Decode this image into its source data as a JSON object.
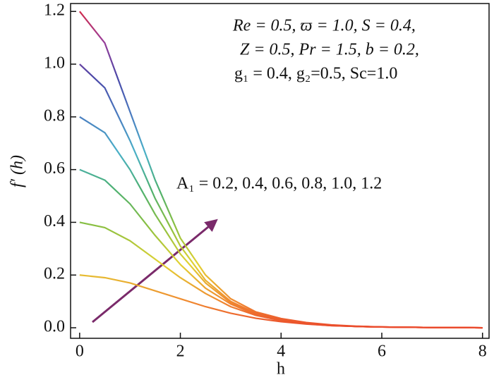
{
  "chart_data": {
    "type": "line",
    "xlabel": "h",
    "ylabel": "f′ (h)",
    "annotations": [
      "Re = 0.5,  ϖ = 1.0, S = 0.4,",
      "Z = 0.5, Pr = 1.5, b = 0.2,",
      "g₁ = 0.4, g₂=0.5, Sc=1.0",
      "A₁ = 0.2, 0.4, 0.6, 0.8, 1.0, 1.2"
    ],
    "x": [
      0,
      0.5,
      1,
      1.5,
      2,
      2.5,
      3,
      3.5,
      4,
      4.5,
      5,
      5.5,
      6,
      6.5,
      7,
      7.5,
      8
    ],
    "series": [
      {
        "values": [
          0.2,
          0.19,
          0.17,
          0.14,
          0.11,
          0.08,
          0.055,
          0.036,
          0.023,
          0.014,
          0.008,
          0.005,
          0.003,
          0.002,
          0.001,
          0.001,
          0
        ]
      },
      {
        "values": [
          0.4,
          0.38,
          0.33,
          0.26,
          0.19,
          0.13,
          0.08,
          0.047,
          0.027,
          0.015,
          0.008,
          0.005,
          0.003,
          0.002,
          0.001,
          0.001,
          0
        ]
      },
      {
        "values": [
          0.6,
          0.56,
          0.47,
          0.35,
          0.24,
          0.15,
          0.09,
          0.05,
          0.029,
          0.016,
          0.009,
          0.005,
          0.003,
          0.002,
          0.001,
          0.001,
          0
        ]
      },
      {
        "values": [
          0.8,
          0.74,
          0.6,
          0.43,
          0.28,
          0.17,
          0.095,
          0.053,
          0.03,
          0.017,
          0.009,
          0.005,
          0.003,
          0.002,
          0.001,
          0.001,
          0
        ]
      },
      {
        "values": [
          1.0,
          0.91,
          0.71,
          0.49,
          0.31,
          0.18,
          0.1,
          0.055,
          0.032,
          0.018,
          0.01,
          0.005,
          0.003,
          0.002,
          0.001,
          0.001,
          0
        ]
      },
      {
        "values": [
          1.2,
          1.08,
          0.82,
          0.56,
          0.34,
          0.2,
          0.11,
          0.06,
          0.035,
          0.02,
          0.011,
          0.006,
          0.003,
          0.002,
          0.001,
          0.001,
          0
        ]
      }
    ],
    "colorscale": [
      "#e8302a",
      "#f08a30",
      "#e2d232",
      "#8cc040",
      "#4cb070",
      "#4ab0c8",
      "#4a7cc0",
      "#4a48a8",
      "#9a3c98",
      "#e02838"
    ],
    "xlim": [
      -0.18,
      8.13
    ],
    "ylim": [
      -0.04,
      1.23
    ],
    "xticks": [
      0,
      2,
      4,
      6,
      8
    ],
    "yticks": [
      {
        "value": 0,
        "label": "0.0"
      },
      0.2,
      0.4,
      0.6,
      0.8,
      {
        "value": 1,
        "label": "1.0"
      },
      1.2
    ]
  }
}
